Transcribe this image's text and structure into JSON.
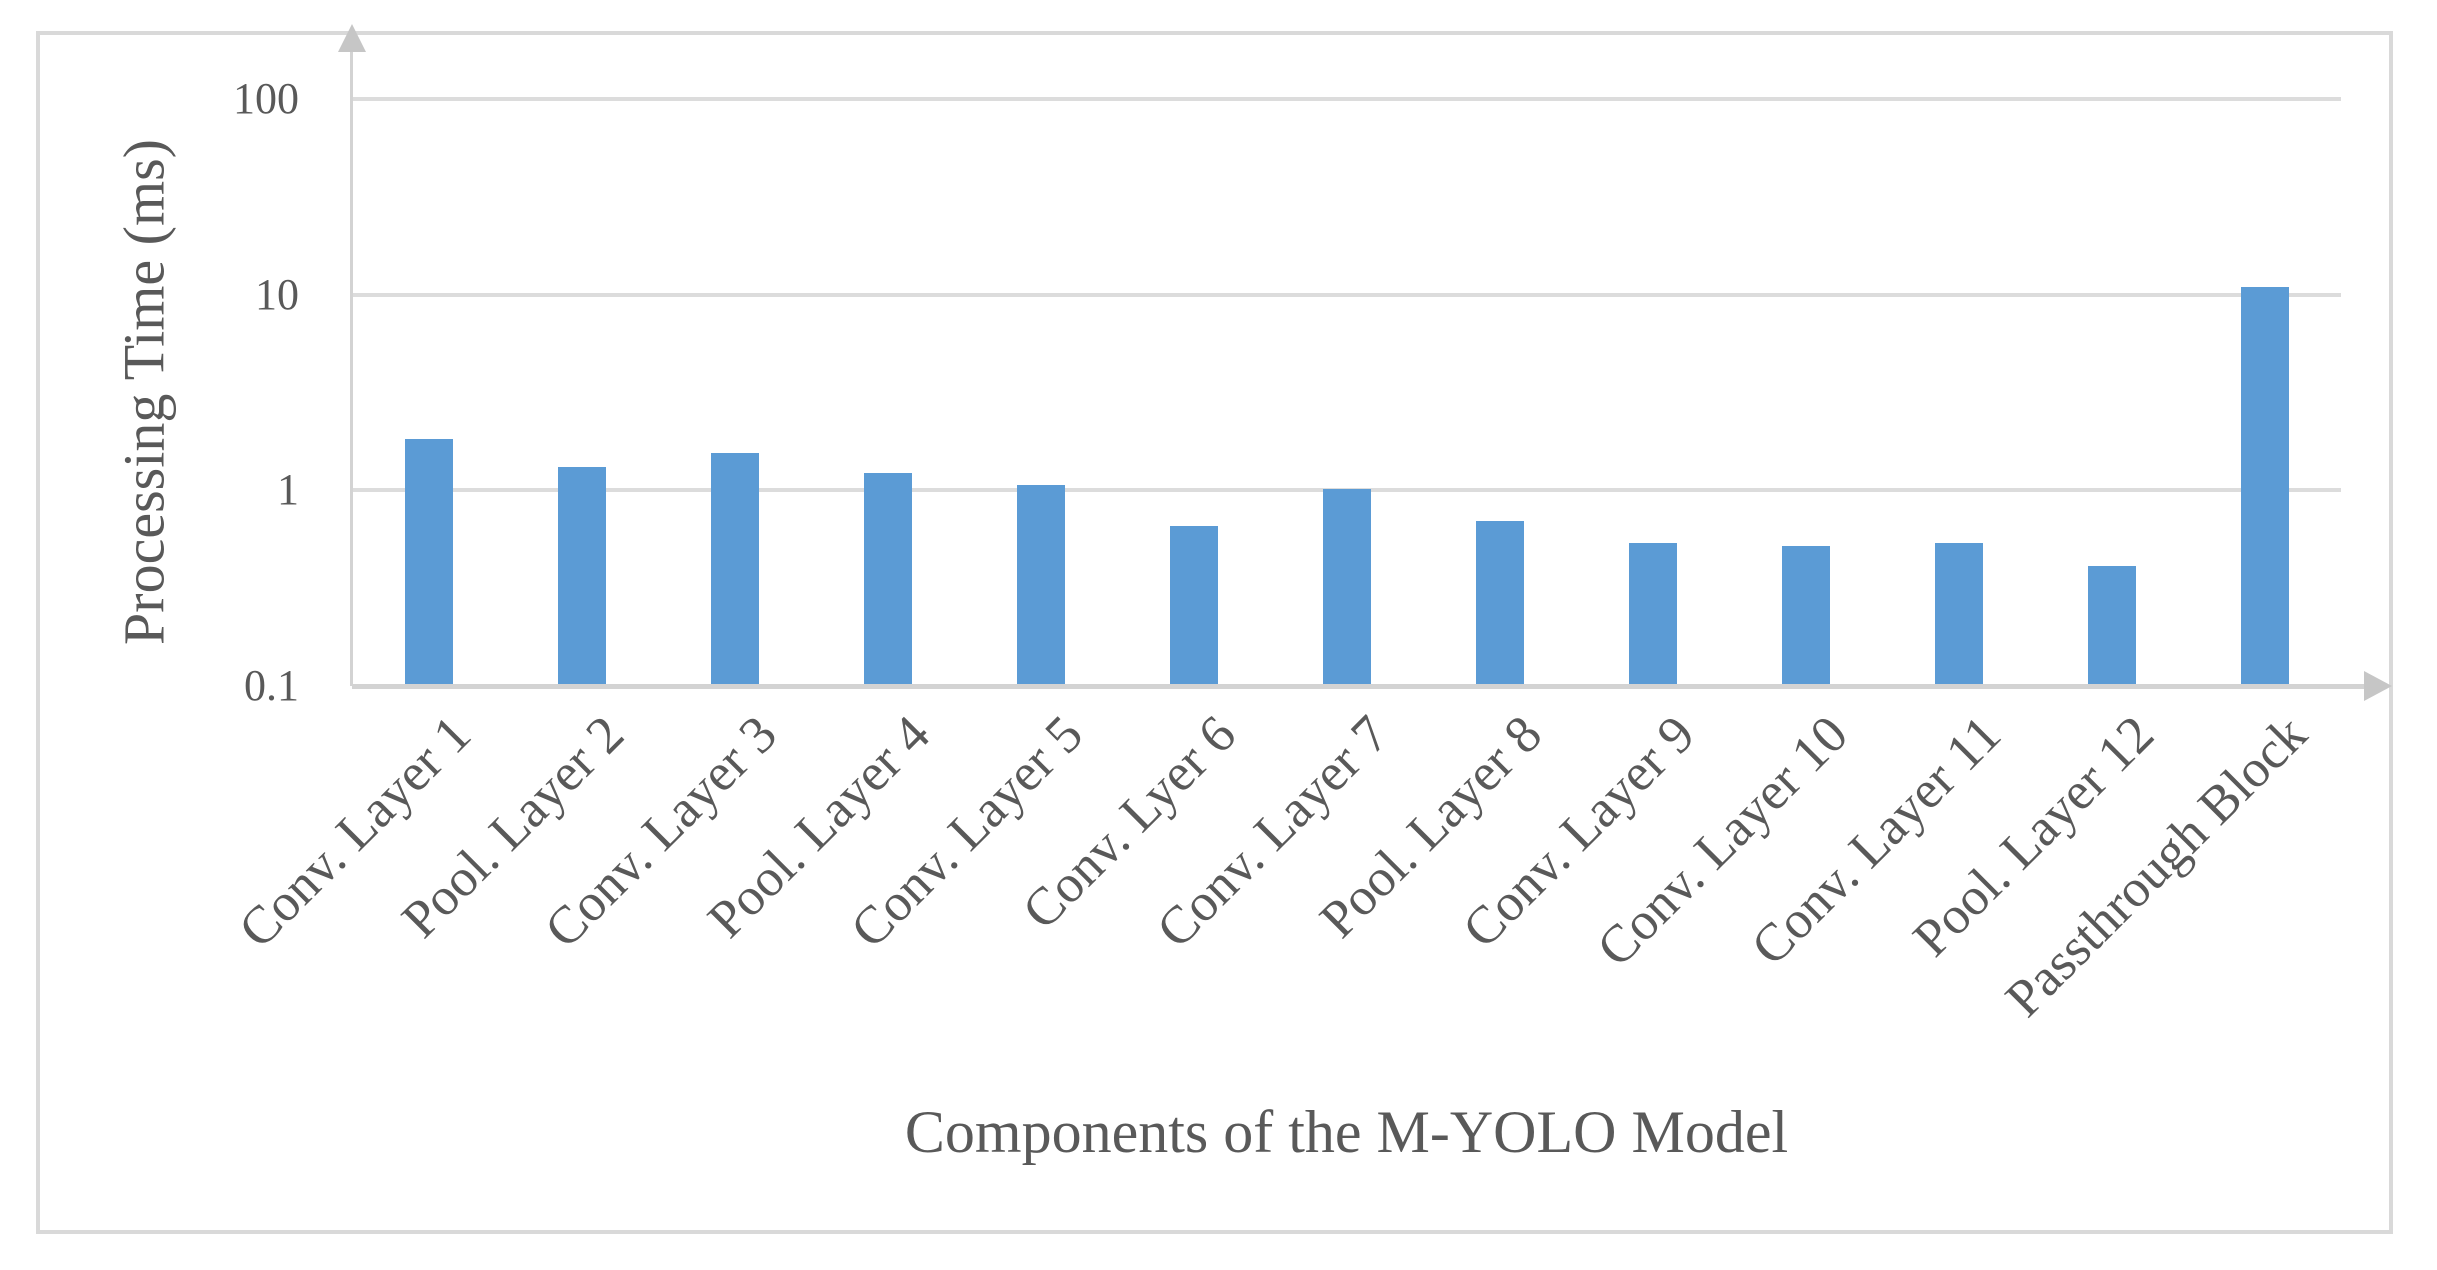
{
  "chart_data": {
    "type": "bar",
    "title": "",
    "xlabel": "Components of the M-YOLO Model",
    "ylabel": "Processing Time (ms)",
    "y_scale": "log10",
    "ylim": [
      0.1,
      100
    ],
    "y_ticks": [
      100,
      10,
      1,
      0.1
    ],
    "y_tick_labels": [
      "100",
      "10",
      "1",
      "0.1"
    ],
    "grid": true,
    "legend": false,
    "categories": [
      "Conv. Layer 1",
      "Pool. Layer 2",
      "Conv. Layer 3",
      "Pool. Layer 4",
      "Conv. Layer 5",
      "Conv. Lyer 6",
      "Conv. Layer 7",
      "Pool. Layer 8",
      "Conv. Layer 9",
      "Conv. Layer 10",
      "Conv. Layer 11",
      "Pool. Layer 12",
      "Passthrough Block"
    ],
    "values": [
      1.82,
      1.31,
      1.55,
      1.22,
      1.06,
      0.66,
      1.02,
      0.7,
      0.54,
      0.52,
      0.54,
      0.41,
      11.0
    ],
    "colors": {
      "bar": "#5B9BD5",
      "gridline": "#DCDCDC",
      "axis_line": "#D3D3D3",
      "arrow": "#C6C6C6",
      "text": "#595959",
      "frame_border": "#D9D9D9",
      "background": "#FFFFFF"
    }
  }
}
